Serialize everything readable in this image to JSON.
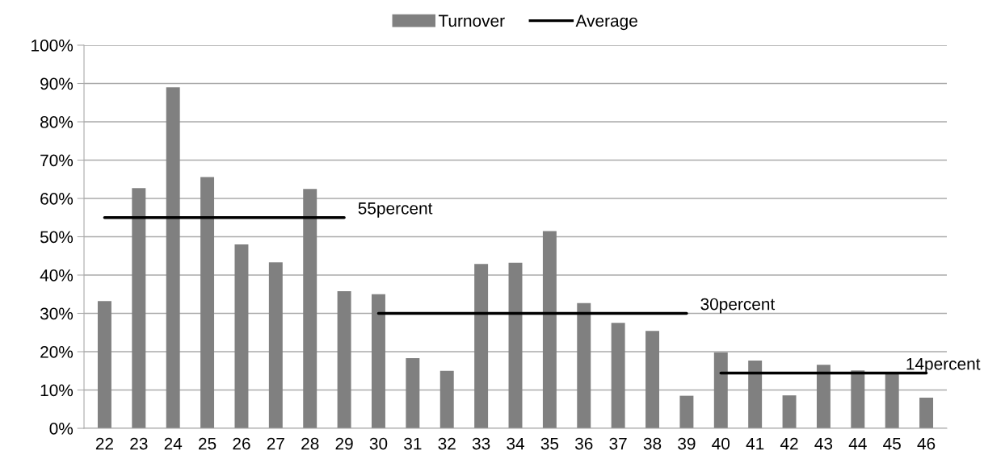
{
  "chart_data": {
    "type": "bar",
    "categories": [
      "22",
      "23",
      "24",
      "25",
      "26",
      "27",
      "28",
      "29",
      "30",
      "31",
      "32",
      "33",
      "34",
      "35",
      "36",
      "37",
      "38",
      "39",
      "40",
      "41",
      "42",
      "43",
      "44",
      "45",
      "46"
    ],
    "series": [
      {
        "name": "Turnover",
        "color": "#808080",
        "values": [
          33.2,
          62.7,
          89.0,
          65.6,
          48.0,
          43.3,
          62.5,
          35.8,
          35.0,
          18.3,
          15.0,
          42.9,
          43.2,
          51.5,
          32.7,
          27.5,
          25.4,
          8.5,
          19.8,
          17.7,
          8.6,
          16.6,
          15.1,
          14.2,
          8.0
        ]
      },
      {
        "name": "Average",
        "type": "line",
        "color": "#000000",
        "x": [
          "22",
          "29"
        ],
        "values": [
          55,
          55
        ]
      },
      {
        "type": "line",
        "color": "#000000",
        "x": [
          "30",
          "39"
        ],
        "values": [
          30,
          30
        ]
      },
      {
        "type": "line",
        "color": "#000000",
        "x": [
          "40",
          "46"
        ],
        "values": [
          14.4,
          14.4
        ]
      }
    ],
    "ylim": [
      0,
      100
    ],
    "yticks": [
      {
        "value": 0,
        "label": "0%"
      },
      {
        "value": 10,
        "label": "10%"
      },
      {
        "value": 20,
        "label": "20%"
      },
      {
        "value": 30,
        "label": "30%"
      },
      {
        "value": 40,
        "label": "40%"
      },
      {
        "value": 50,
        "label": "50%"
      },
      {
        "value": 60,
        "label": "60%"
      },
      {
        "value": 70,
        "label": "70%"
      },
      {
        "value": 80,
        "label": "80%"
      },
      {
        "value": 90,
        "label": "90%"
      },
      {
        "value": 100,
        "label": "100%"
      }
    ],
    "grid": "y",
    "legend": "top",
    "annotations": [
      {
        "text": "55percent",
        "x": "29",
        "y": 55
      },
      {
        "text": "30percent",
        "x": "39",
        "y": 30
      },
      {
        "text": "14percent",
        "x": "45",
        "y": 14.4
      }
    ]
  }
}
